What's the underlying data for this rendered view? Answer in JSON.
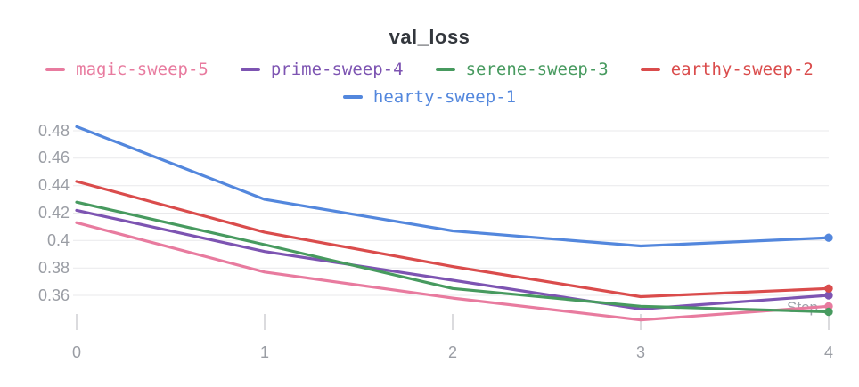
{
  "chart_data": {
    "type": "line",
    "title": "val_loss",
    "xlabel": "Step",
    "x": [
      0,
      1,
      2,
      3,
      4
    ],
    "xtick_labels": [
      "0",
      "1",
      "2",
      "3",
      "4"
    ],
    "yticks": [
      0.48,
      0.46,
      0.44,
      0.42,
      0.4,
      0.38,
      0.36
    ],
    "ytick_labels": [
      "0.48",
      "0.46",
      "0.44",
      "0.42",
      "0.4",
      "0.38",
      "0.36"
    ],
    "ylim": [
      0.335,
      0.49
    ],
    "grid": "horizontal",
    "legend_position": "top",
    "series": [
      {
        "name": "magic-sweep-5",
        "color": "#E87B9F",
        "values": [
          0.413,
          0.377,
          0.358,
          0.342,
          0.352
        ]
      },
      {
        "name": "prime-sweep-4",
        "color": "#7D54B2",
        "values": [
          0.422,
          0.392,
          0.371,
          0.35,
          0.36
        ]
      },
      {
        "name": "serene-sweep-3",
        "color": "#479A5F",
        "values": [
          0.428,
          0.397,
          0.365,
          0.352,
          0.348
        ]
      },
      {
        "name": "earthy-sweep-2",
        "color": "#DA4C4C",
        "values": [
          0.443,
          0.406,
          0.381,
          0.359,
          0.365
        ]
      },
      {
        "name": "hearty-sweep-1",
        "color": "#5387DD",
        "values": [
          0.483,
          0.43,
          0.407,
          0.396,
          0.402
        ]
      }
    ],
    "legend_rows": [
      [
        "magic-sweep-5",
        "prime-sweep-4",
        "serene-sweep-3",
        "earthy-sweep-2"
      ],
      [
        "hearty-sweep-1"
      ]
    ]
  },
  "colors": {
    "background": "#FFFFFF",
    "title_text": "#33373D",
    "axis_text": "#9A9DA4",
    "grid_line": "#E9E9EB",
    "tick_mark": "#DBDBDE"
  }
}
